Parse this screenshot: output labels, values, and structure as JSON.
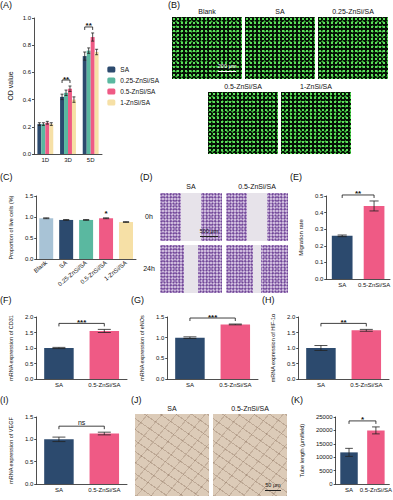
{
  "chart_data": [
    {
      "panel": "(A)",
      "type": "bar",
      "y_label": "OD value",
      "categories": [
        "1D",
        "3D",
        "5D"
      ],
      "series": [
        {
          "name": "SA",
          "color": "#2c4a6e",
          "values": [
            0.22,
            0.42,
            0.72
          ],
          "errors": [
            0.01,
            0.02,
            0.03
          ]
        },
        {
          "name": "0.25-ZnSi/SA",
          "color": "#5ab8a0",
          "values": [
            0.22,
            0.45,
            0.76
          ],
          "errors": [
            0.01,
            0.02,
            0.02
          ]
        },
        {
          "name": "0.5-ZnSi/SA",
          "color": "#ef5a85",
          "values": [
            0.23,
            0.48,
            0.86
          ],
          "errors": [
            0.01,
            0.02,
            0.03
          ]
        },
        {
          "name": "1-ZnSi/SA",
          "color": "#f6e0a6",
          "values": [
            0.22,
            0.4,
            0.75
          ],
          "errors": [
            0.01,
            0.02,
            0.02
          ]
        }
      ],
      "ylim": [
        0,
        1
      ],
      "yticks": [
        {
          "value": 0,
          "label": "0.0"
        },
        0.2,
        0.4,
        0.6,
        0.8,
        {
          "value": 1,
          "label": "1.0"
        }
      ],
      "legend": "right",
      "grid": false,
      "significance": [
        {
          "label": "**",
          "category": "3D",
          "from": "SA",
          "to": "0.5-ZnSi/SA"
        },
        {
          "label": "**",
          "category": "5D",
          "from": "SA",
          "to": "0.5-ZnSi/SA"
        }
      ]
    },
    {
      "panel": "(C)",
      "type": "bar",
      "y_label": "Proportion of live cells (%)",
      "categories": [
        "Blank",
        "SA",
        "0.25-ZnSi/SA",
        "0.5-ZnSi/SA",
        "1-ZnSi/SA"
      ],
      "values": [
        0.97,
        0.93,
        0.93,
        0.97,
        0.88
      ],
      "errors": [
        0.01,
        0.01,
        0.01,
        0.01,
        0.01
      ],
      "colors": [
        "#a8c3d6",
        "#2c4a6e",
        "#5ab8a0",
        "#ef5a85",
        "#f6e0a6"
      ],
      "ylim": [
        0,
        1.5
      ],
      "yticks": [
        {
          "value": 0,
          "label": "0.0"
        },
        0.5,
        {
          "value": 1,
          "label": "1.0"
        },
        1.5
      ],
      "grid": false,
      "significance": [
        {
          "label": "*",
          "category": "0.5-ZnSi/SA"
        }
      ]
    },
    {
      "panel": "(E)",
      "type": "bar",
      "y_label": "Migration rate",
      "categories": [
        "SA",
        "0.5-ZnSi/SA"
      ],
      "values": [
        0.26,
        0.44
      ],
      "errors": [
        0.005,
        0.03
      ],
      "colors": [
        "#2c4a6e",
        "#ef5a85"
      ],
      "ylim": [
        0,
        0.5
      ],
      "yticks": [
        {
          "value": 0,
          "label": "0.0"
        },
        0.1,
        0.2,
        0.3,
        0.4,
        0.5
      ],
      "grid": false,
      "significance": [
        {
          "label": "**",
          "from": "SA",
          "to": "0.5-ZnSi/SA"
        }
      ]
    },
    {
      "panel": "(F)",
      "type": "bar",
      "y_label": "mRNA expression of CD31",
      "categories": [
        "SA",
        "0.5-ZnSi/SA"
      ],
      "values": [
        1.0,
        1.55
      ],
      "errors": [
        0.02,
        0.05
      ],
      "colors": [
        "#2c4a6e",
        "#ef5a85"
      ],
      "ylim": [
        0,
        2
      ],
      "yticks": [
        {
          "value": 0,
          "label": "0.0"
        },
        0.5,
        {
          "value": 1,
          "label": "1.0"
        },
        1.5,
        {
          "value": 2,
          "label": "2.0"
        }
      ],
      "grid": false,
      "significance": [
        {
          "label": "***",
          "from": "SA",
          "to": "0.5-ZnSi/SA"
        }
      ]
    },
    {
      "panel": "(G)",
      "type": "bar",
      "y_label": "mRNA expression of eNOs",
      "categories": [
        "SA",
        "0.5-ZnSi/SA"
      ],
      "values": [
        1.0,
        1.32
      ],
      "errors": [
        0.02,
        0.01
      ],
      "colors": [
        "#2c4a6e",
        "#ef5a85"
      ],
      "ylim": [
        0,
        1.5
      ],
      "yticks": [
        {
          "value": 0,
          "label": "0.0"
        },
        0.5,
        {
          "value": 1,
          "label": "1.0"
        },
        1.5
      ],
      "grid": false,
      "significance": [
        {
          "label": "***",
          "from": "SA",
          "to": "0.5-ZnSi/SA"
        }
      ]
    },
    {
      "panel": "(H)",
      "type": "bar",
      "y_label": "mRNA expression of HIF-1α",
      "categories": [
        "SA",
        "0.5-ZnSi/SA"
      ],
      "values": [
        1.0,
        1.57
      ],
      "errors": [
        0.08,
        0.03
      ],
      "colors": [
        "#2c4a6e",
        "#ef5a85"
      ],
      "ylim": [
        0,
        2
      ],
      "yticks": [
        {
          "value": 0,
          "label": "0.0"
        },
        0.5,
        {
          "value": 1,
          "label": "1.0"
        },
        1.5,
        {
          "value": 2,
          "label": "2.0"
        }
      ],
      "grid": false,
      "significance": [
        {
          "label": "**",
          "from": "SA",
          "to": "0.5-ZnSi/SA"
        }
      ]
    },
    {
      "panel": "(I)",
      "type": "bar",
      "y_label": "mRNA expression of VEGF",
      "categories": [
        "SA",
        "0.5-ZnSi/SA"
      ],
      "values": [
        1.0,
        1.13
      ],
      "errors": [
        0.05,
        0.03
      ],
      "colors": [
        "#2c4a6e",
        "#ef5a85"
      ],
      "ylim": [
        0,
        1.5
      ],
      "yticks": [
        {
          "value": 0,
          "label": "0.0"
        },
        0.5,
        {
          "value": 1,
          "label": "1.0"
        },
        1.5
      ],
      "grid": false,
      "significance": [
        {
          "label": "ns",
          "from": "SA",
          "to": "0.5-ZnSi/SA"
        }
      ]
    },
    {
      "panel": "(K)",
      "type": "bar",
      "y_label": "Tube length (μm/field)",
      "categories": [
        "SA",
        "0.5-ZnSi/SA"
      ],
      "values": [
        11800,
        20000
      ],
      "errors": [
        1500,
        1300
      ],
      "colors": [
        "#2c4a6e",
        "#ef5a85"
      ],
      "ylim": [
        0,
        25000
      ],
      "yticks": [
        0,
        5000,
        10000,
        15000,
        20000,
        25000
      ],
      "grid": false,
      "significance": [
        {
          "label": "*",
          "from": "SA",
          "to": "0.5-ZnSi/SA"
        }
      ]
    }
  ],
  "images": [
    {
      "panel": "(B)",
      "labels": [
        "Blank",
        "SA",
        "0.25-ZnSi/SA",
        "0.5-ZnSi/SA",
        "1-ZnSi/SA"
      ],
      "scale_bar": "200 μm"
    },
    {
      "panel": "(D)",
      "columns": [
        "SA",
        "0.5-ZnSi/SA"
      ],
      "rows": [
        "0h",
        "24h"
      ],
      "scale_bar": "500 μm"
    },
    {
      "panel": "(J)",
      "labels": [
        "SA",
        "0.5-ZnSi/SA"
      ],
      "scale_bar": "50 μm"
    }
  ]
}
